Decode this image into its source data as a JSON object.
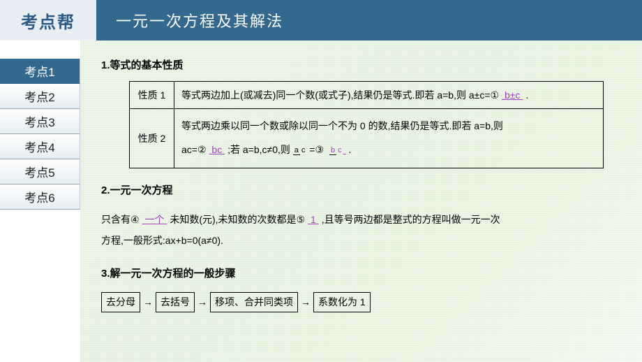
{
  "brand": "考点帮",
  "title": "一元一次方程及其解法",
  "colors": {
    "header": "#34698f",
    "brandBg": "#e8eef4",
    "brandText": "#2a5a85",
    "answer": "#a040c0"
  },
  "sidebar": {
    "items": [
      {
        "label": "考点1",
        "active": true
      },
      {
        "label": "考点2",
        "active": false
      },
      {
        "label": "考点3",
        "active": false
      },
      {
        "label": "考点4",
        "active": false
      },
      {
        "label": "考点5",
        "active": false
      },
      {
        "label": "考点6",
        "active": false
      }
    ]
  },
  "sections": {
    "s1": {
      "heading": "1.等式的基本性质",
      "rows": [
        {
          "label": "性质 1",
          "pre": "等式两边加上(或减去)同一个数(或式子),结果仍是等式.即若 a=b,则 a±c=",
          "circle": "①",
          "answer": " b±c ",
          "post": "."
        },
        {
          "label": "性质 2",
          "pre1": "等式两边乘以同一个数或除以同一个不为 0 的数,结果仍是等式.即若 a=b,则",
          "pre2": "ac=",
          "circle2": "②",
          "answer2": "  bc  ",
          "mid2": ";若 a=b,c≠0,则",
          "frac_a_top": "a",
          "frac_a_bot": "c",
          "eq": "=",
          "circle3": "③",
          "frac_b_top": "b",
          "frac_b_bot": "c",
          "post2": "."
        }
      ]
    },
    "s2": {
      "heading": "2.一元一次方程",
      "t1": "只含有",
      "c4": "④",
      "a4": " 一个 ",
      "t2": "未知数(元),未知数的次数都是",
      "c5": "⑤",
      "a5": "   1   ",
      "t3": ",且等号两边都是整式的方程叫做一元一次",
      "t4": "方程,一般形式:ax+b=0(a≠0)."
    },
    "s3": {
      "heading": "3.解一元一次方程的一般步骤",
      "steps": [
        "去分母",
        "去括号",
        "移项、合并同类项",
        "系数化为 1"
      ]
    }
  }
}
